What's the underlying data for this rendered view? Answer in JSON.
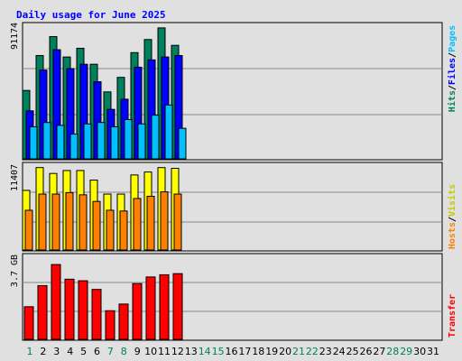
{
  "page": {
    "title": "Daily usage for June 2025"
  },
  "colors": {
    "background": "#e0e0e0",
    "panel": "#e0e0e0",
    "hits": "#00805c",
    "files": "#0000ff",
    "pages": "#00c0ff",
    "visits": "#ffff00",
    "hosts": "#ff8000",
    "transfer": "#ff0000",
    "weekday_label": "#000000",
    "weekend_label": "#00805c"
  },
  "chart_data": [
    {
      "type": "bar",
      "panel": "hits-files-pages",
      "ylabel_max": "91174",
      "side_labels": {
        "hits": "Hits",
        "files": "Files",
        "pages": "Pages"
      },
      "ylim": [
        0,
        91174
      ],
      "days": [
        1,
        2,
        3,
        4,
        5,
        6,
        7,
        8,
        9,
        10,
        11,
        12
      ],
      "series": [
        {
          "name": "Hits",
          "color": "#00805c",
          "values": [
            47000,
            71000,
            84000,
            70000,
            76000,
            65000,
            46000,
            56000,
            73000,
            82000,
            90000,
            78000
          ]
        },
        {
          "name": "Files",
          "color": "#0000ff",
          "values": [
            33000,
            61000,
            75000,
            62000,
            65000,
            53000,
            34000,
            41000,
            63000,
            68000,
            70000,
            71000
          ]
        },
        {
          "name": "Pages",
          "color": "#00c0ff",
          "values": [
            22000,
            25000,
            23000,
            17000,
            24000,
            25000,
            22000,
            27000,
            24000,
            30000,
            37000,
            21000
          ]
        }
      ]
    },
    {
      "type": "bar",
      "panel": "visits-hosts",
      "ylabel_max": "11407",
      "side_labels": {
        "hosts": "Hosts",
        "visits": "Visits"
      },
      "ylim": [
        0,
        11407
      ],
      "days": [
        1,
        2,
        3,
        4,
        5,
        6,
        7,
        8,
        9,
        10,
        11,
        12
      ],
      "series": [
        {
          "name": "Visits",
          "color": "#ffff00",
          "values": [
            8100,
            11200,
            10400,
            10800,
            10800,
            9500,
            7600,
            7600,
            10200,
            10600,
            11200,
            11100
          ]
        },
        {
          "name": "Hosts",
          "color": "#ff8000",
          "values": [
            5400,
            7600,
            7600,
            7800,
            7500,
            6600,
            5400,
            5300,
            7000,
            7300,
            7900,
            7600
          ]
        }
      ]
    },
    {
      "type": "bar",
      "panel": "transfer",
      "ylabel_max": "3.7 GB",
      "side_labels": {
        "transfer": "Transfer"
      },
      "ylim": [
        0,
        3.7
      ],
      "days": [
        1,
        2,
        3,
        4,
        5,
        6,
        7,
        8,
        9,
        10,
        11,
        12
      ],
      "series": [
        {
          "name": "Transfer",
          "color": "#ff0000",
          "values": [
            1.47,
            2.42,
            3.37,
            2.71,
            2.64,
            2.25,
            1.29,
            1.59,
            2.51,
            2.81,
            2.91,
            2.96
          ]
        }
      ]
    }
  ],
  "days": [
    {
      "d": "1",
      "weekend": true
    },
    {
      "d": "2",
      "weekend": false
    },
    {
      "d": "3",
      "weekend": false
    },
    {
      "d": "4",
      "weekend": false
    },
    {
      "d": "5",
      "weekend": false
    },
    {
      "d": "6",
      "weekend": false
    },
    {
      "d": "7",
      "weekend": true
    },
    {
      "d": "8",
      "weekend": true
    },
    {
      "d": "9",
      "weekend": false
    },
    {
      "d": "10",
      "weekend": false
    },
    {
      "d": "11",
      "weekend": false
    },
    {
      "d": "12",
      "weekend": false
    },
    {
      "d": "13",
      "weekend": false
    },
    {
      "d": "14",
      "weekend": true
    },
    {
      "d": "15",
      "weekend": true
    },
    {
      "d": "16",
      "weekend": false
    },
    {
      "d": "17",
      "weekend": false
    },
    {
      "d": "18",
      "weekend": false
    },
    {
      "d": "19",
      "weekend": false
    },
    {
      "d": "20",
      "weekend": false
    },
    {
      "d": "21",
      "weekend": true
    },
    {
      "d": "22",
      "weekend": true
    },
    {
      "d": "23",
      "weekend": false
    },
    {
      "d": "24",
      "weekend": false
    },
    {
      "d": "25",
      "weekend": false
    },
    {
      "d": "26",
      "weekend": false
    },
    {
      "d": "27",
      "weekend": false
    },
    {
      "d": "28",
      "weekend": true
    },
    {
      "d": "29",
      "weekend": true
    },
    {
      "d": "30",
      "weekend": false
    },
    {
      "d": "31",
      "weekend": false
    }
  ]
}
